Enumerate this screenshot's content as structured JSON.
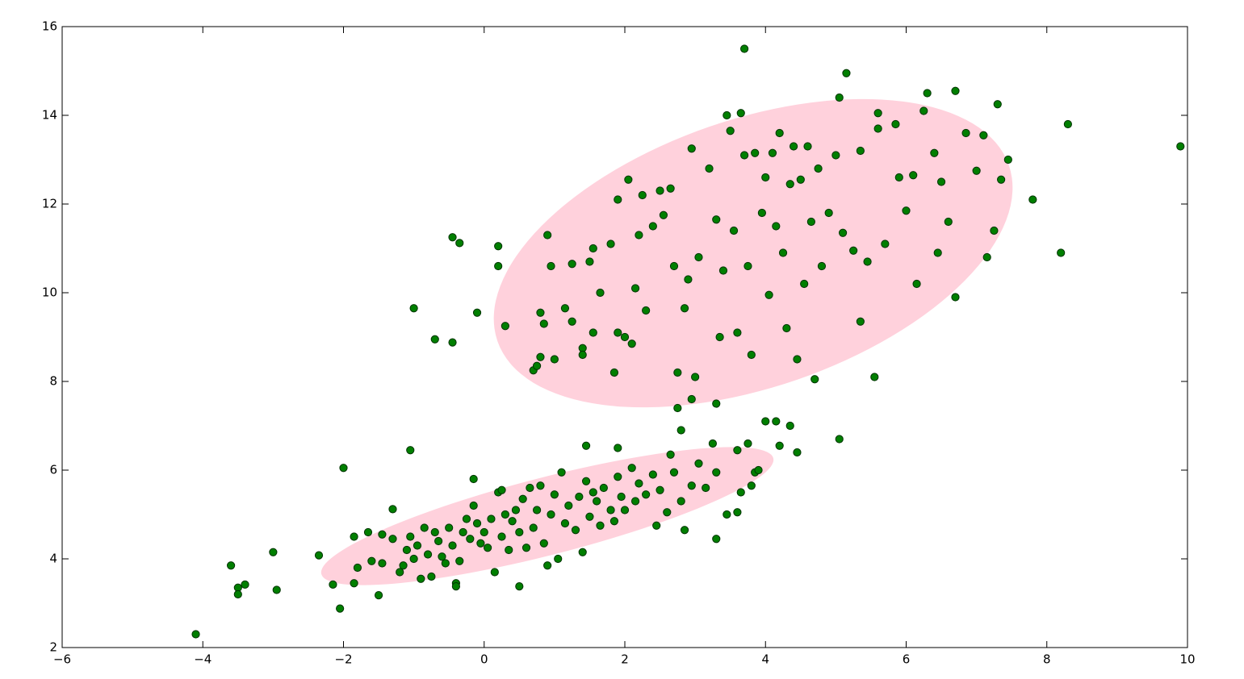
{
  "chart_data": {
    "type": "scatter",
    "x": [
      -4.1,
      -3.6,
      -3.5,
      -3.5,
      -3.4,
      -3.0,
      -2.95,
      -2.35,
      -2.15,
      -2.05,
      -2.0,
      -1.85,
      -1.8,
      -1.85,
      -1.65,
      -1.6,
      -1.5,
      -1.45,
      -1.3,
      -1.05,
      -1.0,
      -0.7,
      -0.45,
      -0.35,
      -0.45,
      -0.1,
      0.2,
      0.2,
      0.3,
      0.7,
      0.75,
      0.8,
      0.8,
      0.85,
      0.9,
      0.95,
      1.0,
      1.15,
      1.25,
      1.25,
      1.4,
      1.4,
      1.5,
      1.55,
      1.55,
      1.65,
      1.8,
      1.85,
      1.9,
      1.9,
      2.0,
      2.05,
      2.1,
      2.15,
      2.2,
      2.25,
      2.3,
      2.4,
      2.5,
      2.55,
      2.65,
      2.7,
      2.75,
      2.85,
      2.9,
      2.95,
      3.0,
      3.05,
      3.2,
      3.3,
      3.35,
      3.4,
      3.45,
      3.5,
      3.55,
      3.6,
      3.65,
      3.7,
      3.7,
      3.75,
      3.8,
      3.85,
      3.95,
      4.0,
      4.05,
      4.1,
      4.15,
      4.2,
      4.25,
      4.3,
      4.35,
      4.4,
      4.45,
      4.5,
      4.55,
      4.6,
      4.65,
      4.7,
      4.75,
      4.8,
      4.9,
      5.0,
      5.05,
      5.1,
      5.15,
      5.25,
      5.35,
      5.35,
      5.45,
      5.55,
      5.6,
      5.6,
      5.7,
      5.85,
      5.9,
      6.0,
      6.1,
      6.15,
      6.25,
      6.3,
      6.4,
      6.45,
      6.5,
      6.6,
      6.7,
      6.7,
      6.85,
      7.0,
      7.1,
      7.15,
      7.25,
      7.3,
      7.35,
      7.45,
      7.8,
      8.2,
      8.3,
      9.9,
      2.65,
      2.8,
      2.75,
      2.95,
      3.3,
      3.25,
      3.75,
      4.0,
      4.15,
      4.35,
      4.2,
      4.45,
      5.05,
      3.6,
      1.45,
      1.9,
      -1.2,
      -1.15,
      -1.1,
      -1.05,
      -1.0,
      -0.95,
      -0.9,
      -0.85,
      -0.8,
      -0.75,
      -0.7,
      -0.65,
      -0.6,
      -0.55,
      -0.5,
      -0.45,
      -0.4,
      -0.4,
      -0.35,
      -0.3,
      -0.25,
      -0.2,
      -0.15,
      -0.1,
      -0.05,
      0.0,
      0.05,
      0.1,
      0.15,
      0.2,
      0.25,
      0.3,
      0.35,
      0.4,
      0.45,
      0.5,
      0.5,
      0.55,
      0.6,
      0.65,
      0.7,
      0.75,
      0.8,
      0.85,
      0.9,
      0.95,
      1.0,
      1.05,
      1.1,
      1.15,
      1.2,
      1.3,
      1.35,
      1.4,
      1.45,
      1.5,
      1.55,
      1.6,
      1.65,
      1.7,
      1.8,
      1.85,
      1.9,
      1.95,
      2.0,
      2.1,
      2.15,
      2.2,
      2.3,
      2.4,
      2.45,
      2.5,
      2.6,
      2.7,
      2.8,
      2.85,
      2.95,
      3.05,
      3.15,
      3.3,
      3.3,
      3.45,
      3.6,
      3.65,
      3.8,
      3.85,
      3.9,
      -1.3,
      -1.45,
      0.25,
      -0.15
    ],
    "values": [
      2.3,
      3.85,
      3.35,
      3.2,
      3.42,
      4.15,
      3.3,
      4.08,
      3.42,
      2.88,
      6.05,
      4.5,
      3.8,
      3.45,
      4.6,
      3.95,
      3.18,
      4.55,
      5.12,
      6.45,
      9.65,
      8.95,
      11.25,
      11.12,
      8.88,
      9.55,
      11.05,
      10.6,
      9.25,
      8.25,
      8.35,
      8.55,
      9.55,
      9.3,
      11.3,
      10.6,
      8.5,
      9.65,
      10.65,
      9.35,
      8.75,
      8.6,
      10.7,
      11.0,
      9.1,
      10.0,
      11.1,
      8.2,
      9.1,
      12.1,
      9.0,
      12.55,
      8.85,
      10.1,
      11.3,
      12.2,
      9.6,
      11.5,
      12.3,
      11.75,
      12.35,
      10.6,
      8.2,
      9.65,
      10.3,
      13.25,
      8.1,
      10.8,
      12.8,
      11.65,
      9.0,
      10.5,
      14.0,
      13.65,
      11.4,
      9.1,
      14.05,
      15.5,
      13.1,
      10.6,
      8.6,
      13.15,
      11.8,
      12.6,
      9.95,
      13.15,
      11.5,
      13.6,
      10.9,
      9.2,
      12.45,
      13.3,
      8.5,
      12.55,
      10.2,
      13.3,
      11.6,
      8.05,
      12.8,
      10.6,
      11.8,
      13.1,
      14.4,
      11.35,
      14.95,
      10.95,
      9.35,
      13.2,
      10.7,
      8.1,
      13.7,
      14.05,
      11.1,
      13.8,
      12.6,
      11.85,
      12.65,
      10.2,
      14.1,
      14.5,
      13.15,
      10.9,
      12.5,
      11.6,
      14.55,
      9.9,
      13.6,
      12.75,
      13.55,
      10.8,
      11.4,
      14.25,
      12.55,
      13.0,
      12.1,
      10.9,
      13.8,
      13.3,
      6.35,
      6.9,
      7.4,
      7.6,
      7.5,
      6.6,
      6.6,
      7.1,
      7.1,
      7.0,
      6.55,
      6.4,
      6.7,
      6.45,
      6.55,
      6.5,
      3.7,
      3.85,
      4.2,
      4.5,
      4.0,
      4.3,
      3.55,
      4.7,
      4.1,
      3.6,
      4.6,
      4.4,
      4.05,
      3.9,
      4.7,
      4.3,
      3.45,
      3.38,
      3.95,
      4.6,
      4.9,
      4.45,
      5.2,
      4.8,
      4.35,
      4.6,
      4.25,
      4.9,
      3.7,
      5.5,
      4.5,
      5.0,
      4.2,
      4.85,
      5.1,
      3.38,
      4.6,
      5.35,
      4.25,
      5.6,
      4.7,
      5.1,
      5.65,
      4.35,
      3.85,
      5.0,
      5.45,
      4.0,
      5.95,
      4.8,
      5.2,
      4.65,
      5.4,
      4.15,
      5.75,
      4.95,
      5.5,
      5.3,
      4.75,
      5.6,
      5.1,
      4.85,
      5.85,
      5.4,
      5.1,
      6.05,
      5.3,
      5.7,
      5.45,
      5.9,
      4.75,
      5.55,
      5.05,
      5.95,
      5.3,
      4.65,
      5.65,
      6.15,
      5.6,
      5.95,
      4.45,
      5.0,
      5.05,
      5.5,
      5.65,
      5.95,
      6.0,
      4.45,
      3.9,
      5.55,
      5.8
    ],
    "color": "#007f00",
    "edgecolor": "#003300",
    "xlim": [
      -6,
      10
    ],
    "ylim": [
      2,
      16
    ],
    "xticks": [
      {
        "value": -6,
        "label": "−6"
      },
      {
        "value": -4,
        "label": "−4"
      },
      {
        "value": -2,
        "label": "−2"
      },
      0,
      2,
      4,
      6,
      8,
      10
    ],
    "yticks": [
      2,
      4,
      6,
      8,
      10,
      12,
      14,
      16
    ]
  }
}
